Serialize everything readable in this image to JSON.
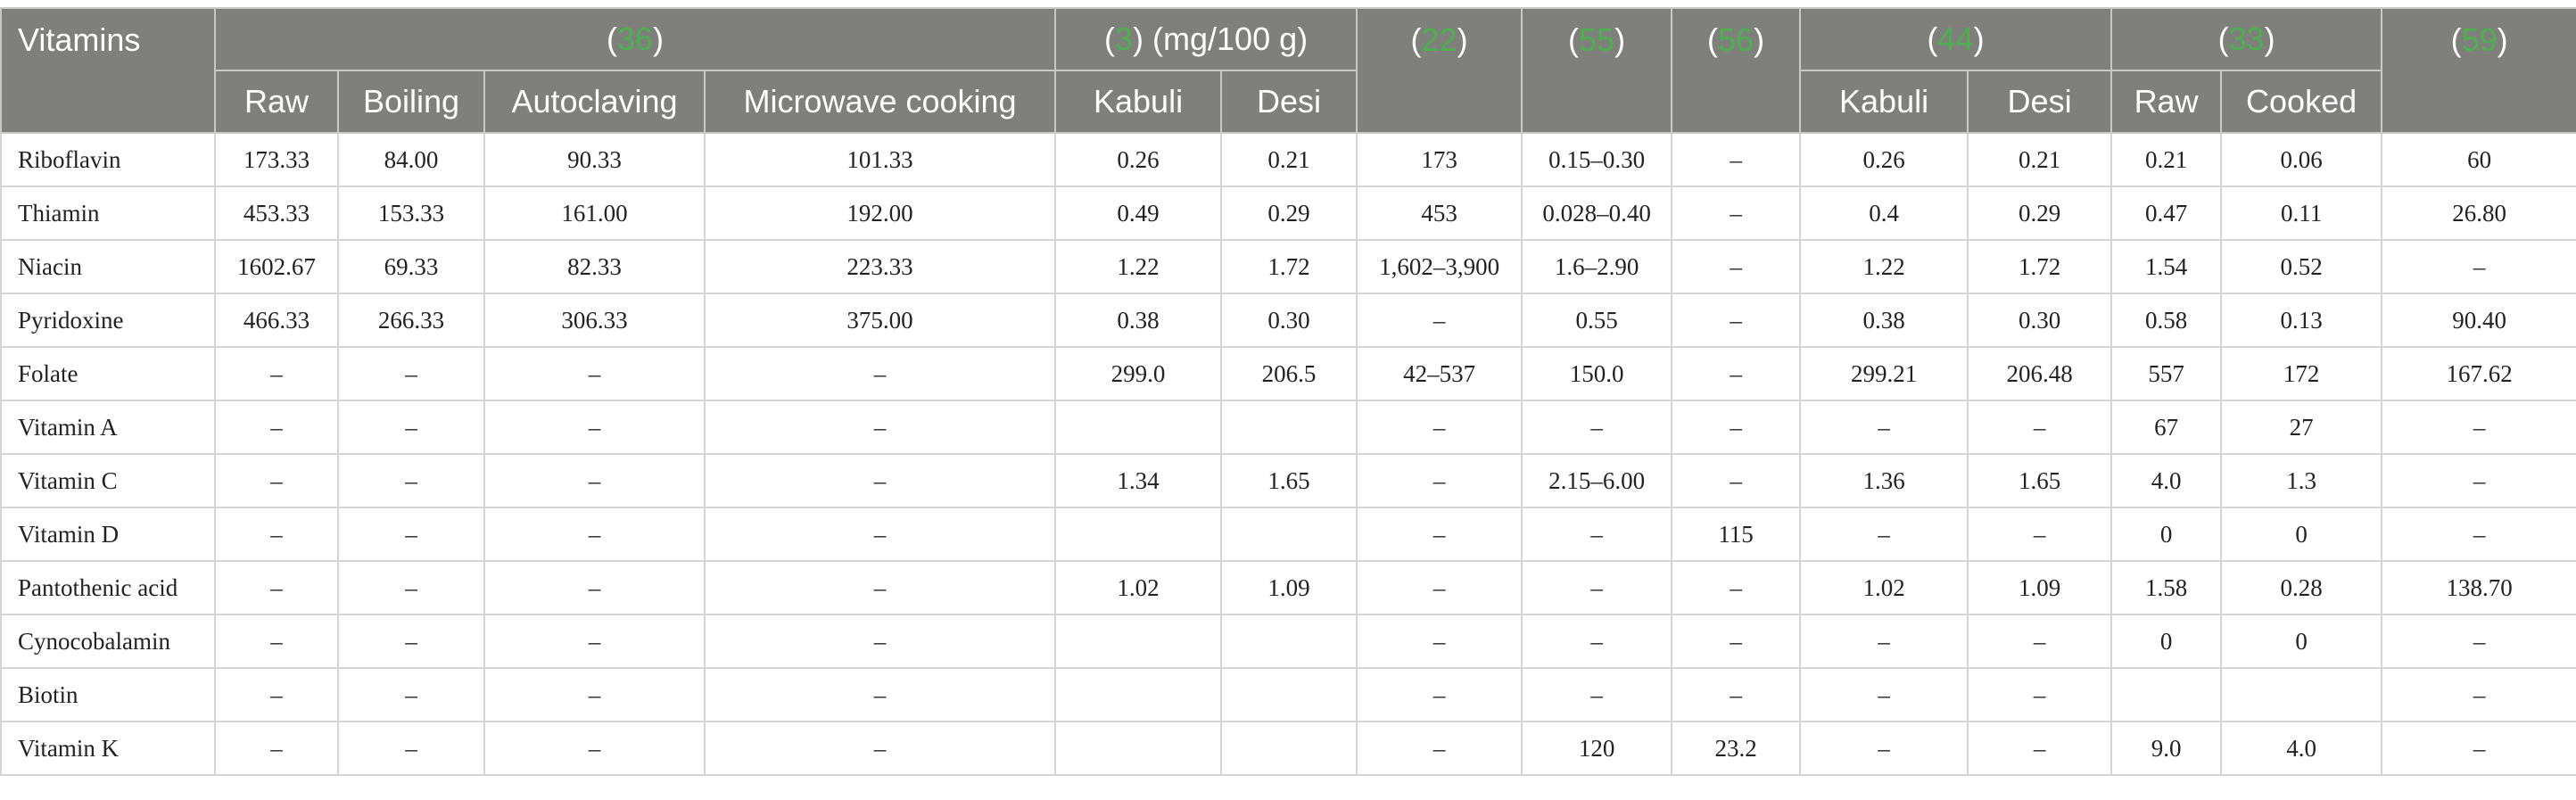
{
  "header": {
    "corner": "Vitamins",
    "groups": [
      {
        "ref": "36",
        "suffix": ""
      },
      {
        "ref": "3",
        "suffix": " (mg/100 g)"
      },
      {
        "ref": "22",
        "suffix": ""
      },
      {
        "ref": "55",
        "suffix": ""
      },
      {
        "ref": "56",
        "suffix": ""
      },
      {
        "ref": "44",
        "suffix": ""
      },
      {
        "ref": "33",
        "suffix": ""
      },
      {
        "ref": "59",
        "suffix": ""
      }
    ],
    "subcols": [
      "Raw",
      "Boiling",
      "Autoclaving",
      "Microwave cooking",
      "Kabuli",
      "Desi",
      "Kabuli",
      "Desi",
      "Raw",
      "Cooked"
    ]
  },
  "rows": [
    {
      "name": "Riboflavin",
      "cells": [
        "173.33",
        "84.00",
        "90.33",
        "101.33",
        "0.26",
        "0.21",
        "173",
        "0.15–0.30",
        "–",
        "0.26",
        "0.21",
        "0.21",
        "0.06",
        "60"
      ]
    },
    {
      "name": "Thiamin",
      "cells": [
        "453.33",
        "153.33",
        "161.00",
        "192.00",
        "0.49",
        "0.29",
        "453",
        "0.028–0.40",
        "–",
        "0.4",
        "0.29",
        "0.47",
        "0.11",
        "26.80"
      ]
    },
    {
      "name": "Niacin",
      "cells": [
        "1602.67",
        "69.33",
        "82.33",
        "223.33",
        "1.22",
        "1.72",
        "1,602–3,900",
        "1.6–2.90",
        "–",
        "1.22",
        "1.72",
        "1.54",
        "0.52",
        "–"
      ]
    },
    {
      "name": "Pyridoxine",
      "cells": [
        "466.33",
        "266.33",
        "306.33",
        "375.00",
        "0.38",
        "0.30",
        "–",
        "0.55",
        "–",
        "0.38",
        "0.30",
        "0.58",
        "0.13",
        "90.40"
      ]
    },
    {
      "name": "Folate",
      "cells": [
        "–",
        "–",
        "–",
        "–",
        "299.0",
        "206.5",
        "42–537",
        "150.0",
        "–",
        "299.21",
        "206.48",
        "557",
        "172",
        "167.62"
      ]
    },
    {
      "name": "Vitamin A",
      "cells": [
        "–",
        "–",
        "–",
        "–",
        "",
        "",
        "–",
        "–",
        "–",
        "–",
        "–",
        "67",
        "27",
        "–"
      ]
    },
    {
      "name": "Vitamin C",
      "cells": [
        "–",
        "–",
        "–",
        "–",
        "1.34",
        "1.65",
        "–",
        "2.15–6.00",
        "–",
        "1.36",
        "1.65",
        "4.0",
        "1.3",
        "–"
      ]
    },
    {
      "name": "Vitamin D",
      "cells": [
        "–",
        "–",
        "–",
        "–",
        "",
        "",
        "–",
        "–",
        "115",
        "–",
        "–",
        "0",
        "0",
        "–"
      ]
    },
    {
      "name": "Pantothenic acid",
      "cells": [
        "–",
        "–",
        "–",
        "–",
        "1.02",
        "1.09",
        "–",
        "–",
        "–",
        "1.02",
        "1.09",
        "1.58",
        "0.28",
        "138.70"
      ]
    },
    {
      "name": "Cynocobalamin",
      "cells": [
        "–",
        "–",
        "–",
        "–",
        "",
        "",
        "–",
        "–",
        "–",
        "–",
        "–",
        "0",
        "0",
        "–"
      ]
    },
    {
      "name": "Biotin",
      "cells": [
        "–",
        "–",
        "–",
        "–",
        "",
        "",
        "–",
        "–",
        "–",
        "–",
        "–",
        "",
        "",
        "–"
      ]
    },
    {
      "name": "Vitamin K",
      "cells": [
        "–",
        "–",
        "–",
        "–",
        "",
        "",
        "–",
        "120",
        "23.2",
        "–",
        "–",
        "9.0",
        "4.0",
        "–"
      ]
    }
  ]
}
